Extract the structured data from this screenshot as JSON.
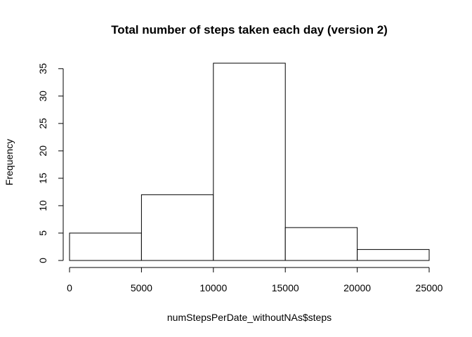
{
  "chart_data": {
    "type": "bar",
    "title": "Total number of steps taken each day (version 2)",
    "xlabel": "numStepsPerDate_withoutNAs$steps",
    "ylabel": "Frequency",
    "bins": [
      {
        "from": 0,
        "to": 5000,
        "count": 5
      },
      {
        "from": 5000,
        "to": 10000,
        "count": 12
      },
      {
        "from": 10000,
        "to": 15000,
        "count": 36
      },
      {
        "from": 15000,
        "to": 20000,
        "count": 6
      },
      {
        "from": 20000,
        "to": 25000,
        "count": 2
      }
    ],
    "xlim": [
      0,
      25000
    ],
    "ylim": [
      0,
      36
    ],
    "x_ticks": [
      0,
      5000,
      10000,
      15000,
      20000,
      25000
    ],
    "y_ticks": [
      0,
      5,
      10,
      15,
      20,
      25,
      30,
      35
    ],
    "grid": false,
    "legend": "none"
  }
}
